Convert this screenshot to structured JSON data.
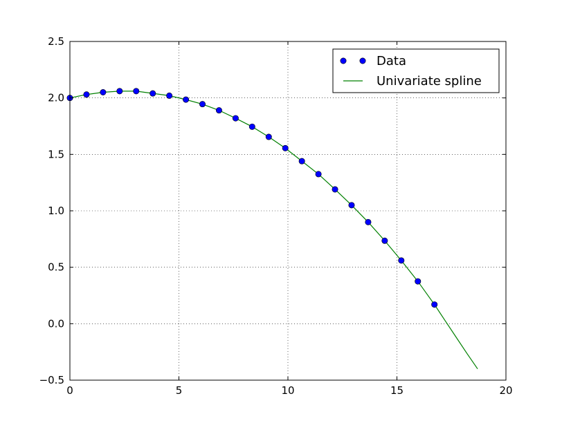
{
  "chart_data": {
    "type": "line",
    "title": "",
    "xlabel": "",
    "ylabel": "",
    "xlim": [
      0,
      20
    ],
    "ylim": [
      -0.5,
      2.5
    ],
    "xticks": [
      0,
      5,
      10,
      15,
      20
    ],
    "yticks": [
      -0.5,
      0.0,
      0.5,
      1.0,
      1.5,
      2.0,
      2.5
    ],
    "xtick_labels": [
      "0",
      "5",
      "10",
      "15",
      "20"
    ],
    "ytick_labels": [
      "−0.5",
      "0.0",
      "0.5",
      "1.0",
      "1.5",
      "2.0",
      "2.5"
    ],
    "grid": true,
    "legend": "top-right",
    "series": [
      {
        "name": "Data",
        "style": "markers",
        "color": "#0000ff",
        "x": [
          0.0,
          0.76,
          1.52,
          2.28,
          3.04,
          3.8,
          4.56,
          5.32,
          6.08,
          6.84,
          7.6,
          8.36,
          9.12,
          9.88,
          10.64,
          11.4,
          12.16,
          12.92,
          13.68,
          14.44,
          15.2,
          15.96,
          16.72
        ],
        "y": [
          2.0,
          2.03,
          2.05,
          2.06,
          2.06,
          2.04,
          2.02,
          1.985,
          1.945,
          1.89,
          1.82,
          1.745,
          1.655,
          1.555,
          1.44,
          1.325,
          1.19,
          1.05,
          0.9,
          0.735,
          0.56,
          0.375,
          0.17
        ]
      },
      {
        "name": "Univariate spline",
        "style": "line",
        "color": "#008000",
        "x": [
          0.0,
          0.76,
          1.52,
          2.28,
          3.04,
          3.8,
          4.56,
          5.32,
          6.08,
          6.84,
          7.6,
          8.36,
          9.12,
          9.88,
          10.64,
          11.4,
          12.16,
          12.92,
          13.68,
          14.44,
          15.2,
          15.96,
          16.72,
          17.2,
          17.7,
          18.2,
          18.7
        ],
        "y": [
          2.0,
          2.03,
          2.05,
          2.06,
          2.06,
          2.04,
          2.02,
          1.985,
          1.945,
          1.89,
          1.82,
          1.745,
          1.655,
          1.555,
          1.44,
          1.325,
          1.19,
          1.05,
          0.9,
          0.735,
          0.56,
          0.375,
          0.17,
          0.03,
          -0.115,
          -0.26,
          -0.4
        ]
      }
    ]
  }
}
